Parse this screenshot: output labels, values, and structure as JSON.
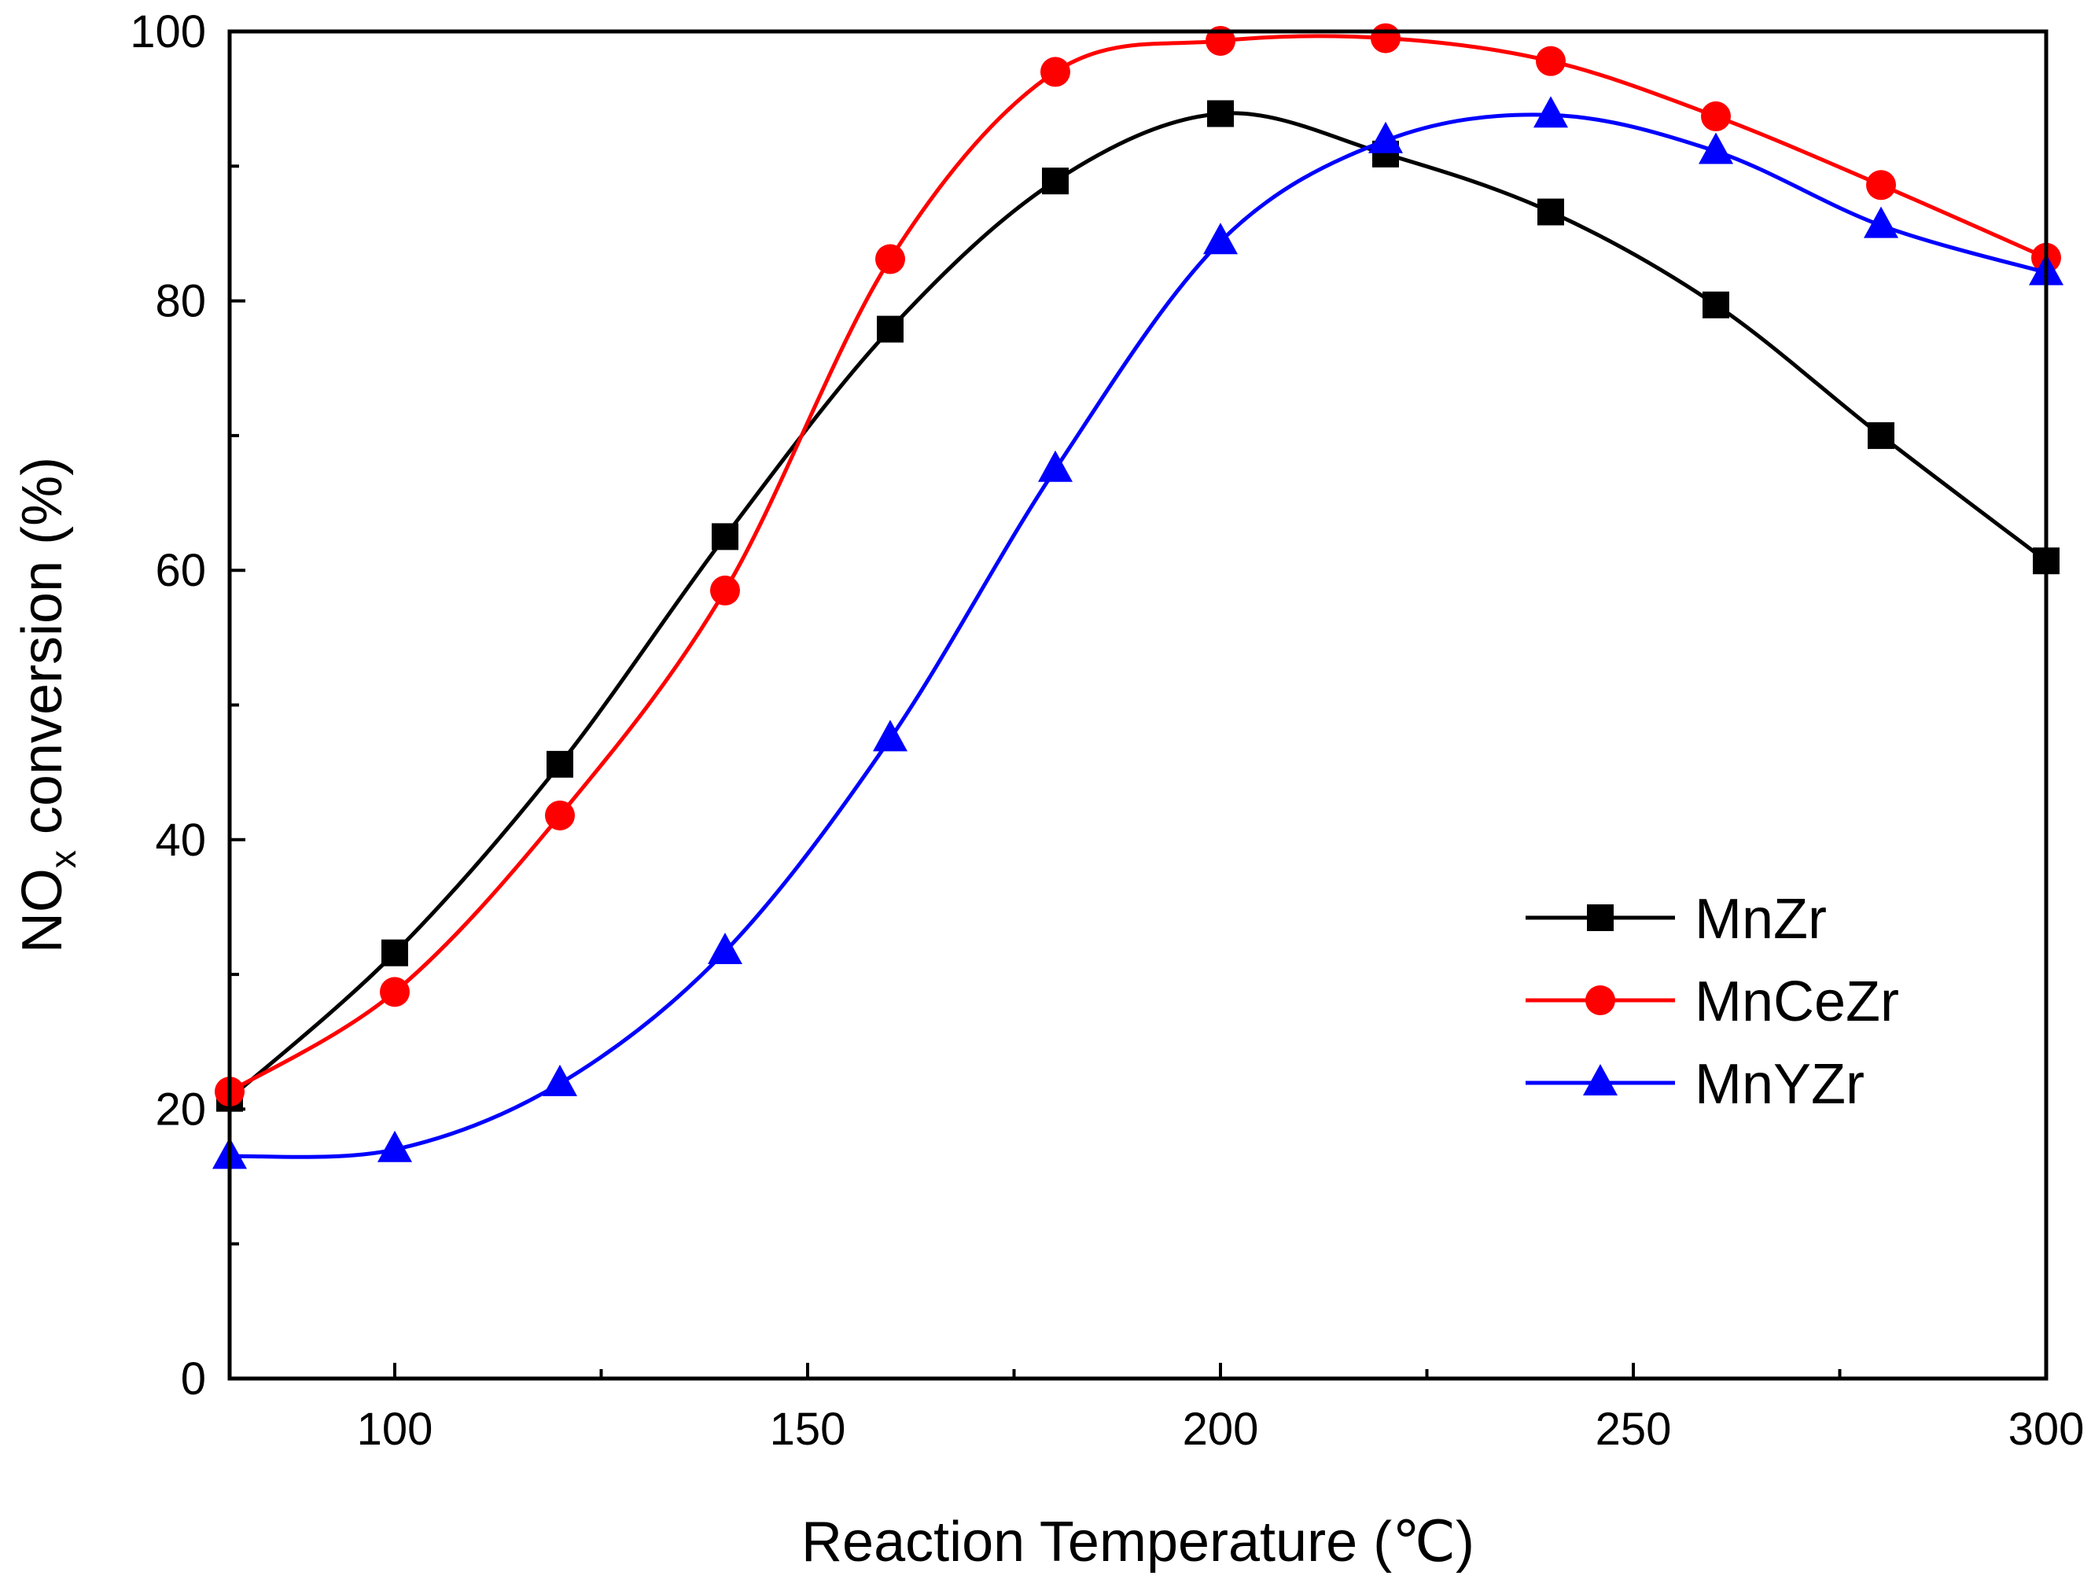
{
  "chart_data": {
    "type": "line",
    "title": "",
    "xlabel": "Reaction Temperature (℃)",
    "ylabel": {
      "prefix": "NO",
      "subscript": "x",
      "suffix": " conversion (%)"
    },
    "xlim": [
      80,
      300
    ],
    "ylim": [
      0,
      100
    ],
    "x_ticks": [
      100,
      150,
      200,
      250,
      300
    ],
    "x_minor_ticks": [
      125,
      175,
      225,
      275
    ],
    "y_ticks": [
      0,
      20,
      40,
      60,
      80,
      100
    ],
    "y_minor_ticks": [
      10,
      30,
      50,
      70,
      90
    ],
    "grid": false,
    "legend_position": "center-right",
    "x": [
      80,
      100,
      120,
      140,
      160,
      180,
      200,
      220,
      240,
      260,
      280,
      300
    ],
    "series": [
      {
        "name": "MnZr",
        "color": "#000000",
        "marker": "square",
        "values": [
          20.8,
          31.6,
          45.6,
          62.5,
          77.9,
          88.9,
          93.9,
          90.9,
          86.6,
          79.7,
          70.0,
          60.7
        ]
      },
      {
        "name": "MnCeZr",
        "color": "#ff0000",
        "marker": "circle",
        "values": [
          21.3,
          28.7,
          41.8,
          58.5,
          83.1,
          97.0,
          99.3,
          99.5,
          97.8,
          93.7,
          88.6,
          83.2
        ]
      },
      {
        "name": "MnYZr",
        "color": "#0000ff",
        "marker": "triangle",
        "values": [
          16.5,
          17.0,
          21.9,
          31.7,
          47.5,
          67.5,
          84.4,
          91.9,
          93.8,
          91.1,
          85.6,
          82.1
        ]
      }
    ]
  }
}
